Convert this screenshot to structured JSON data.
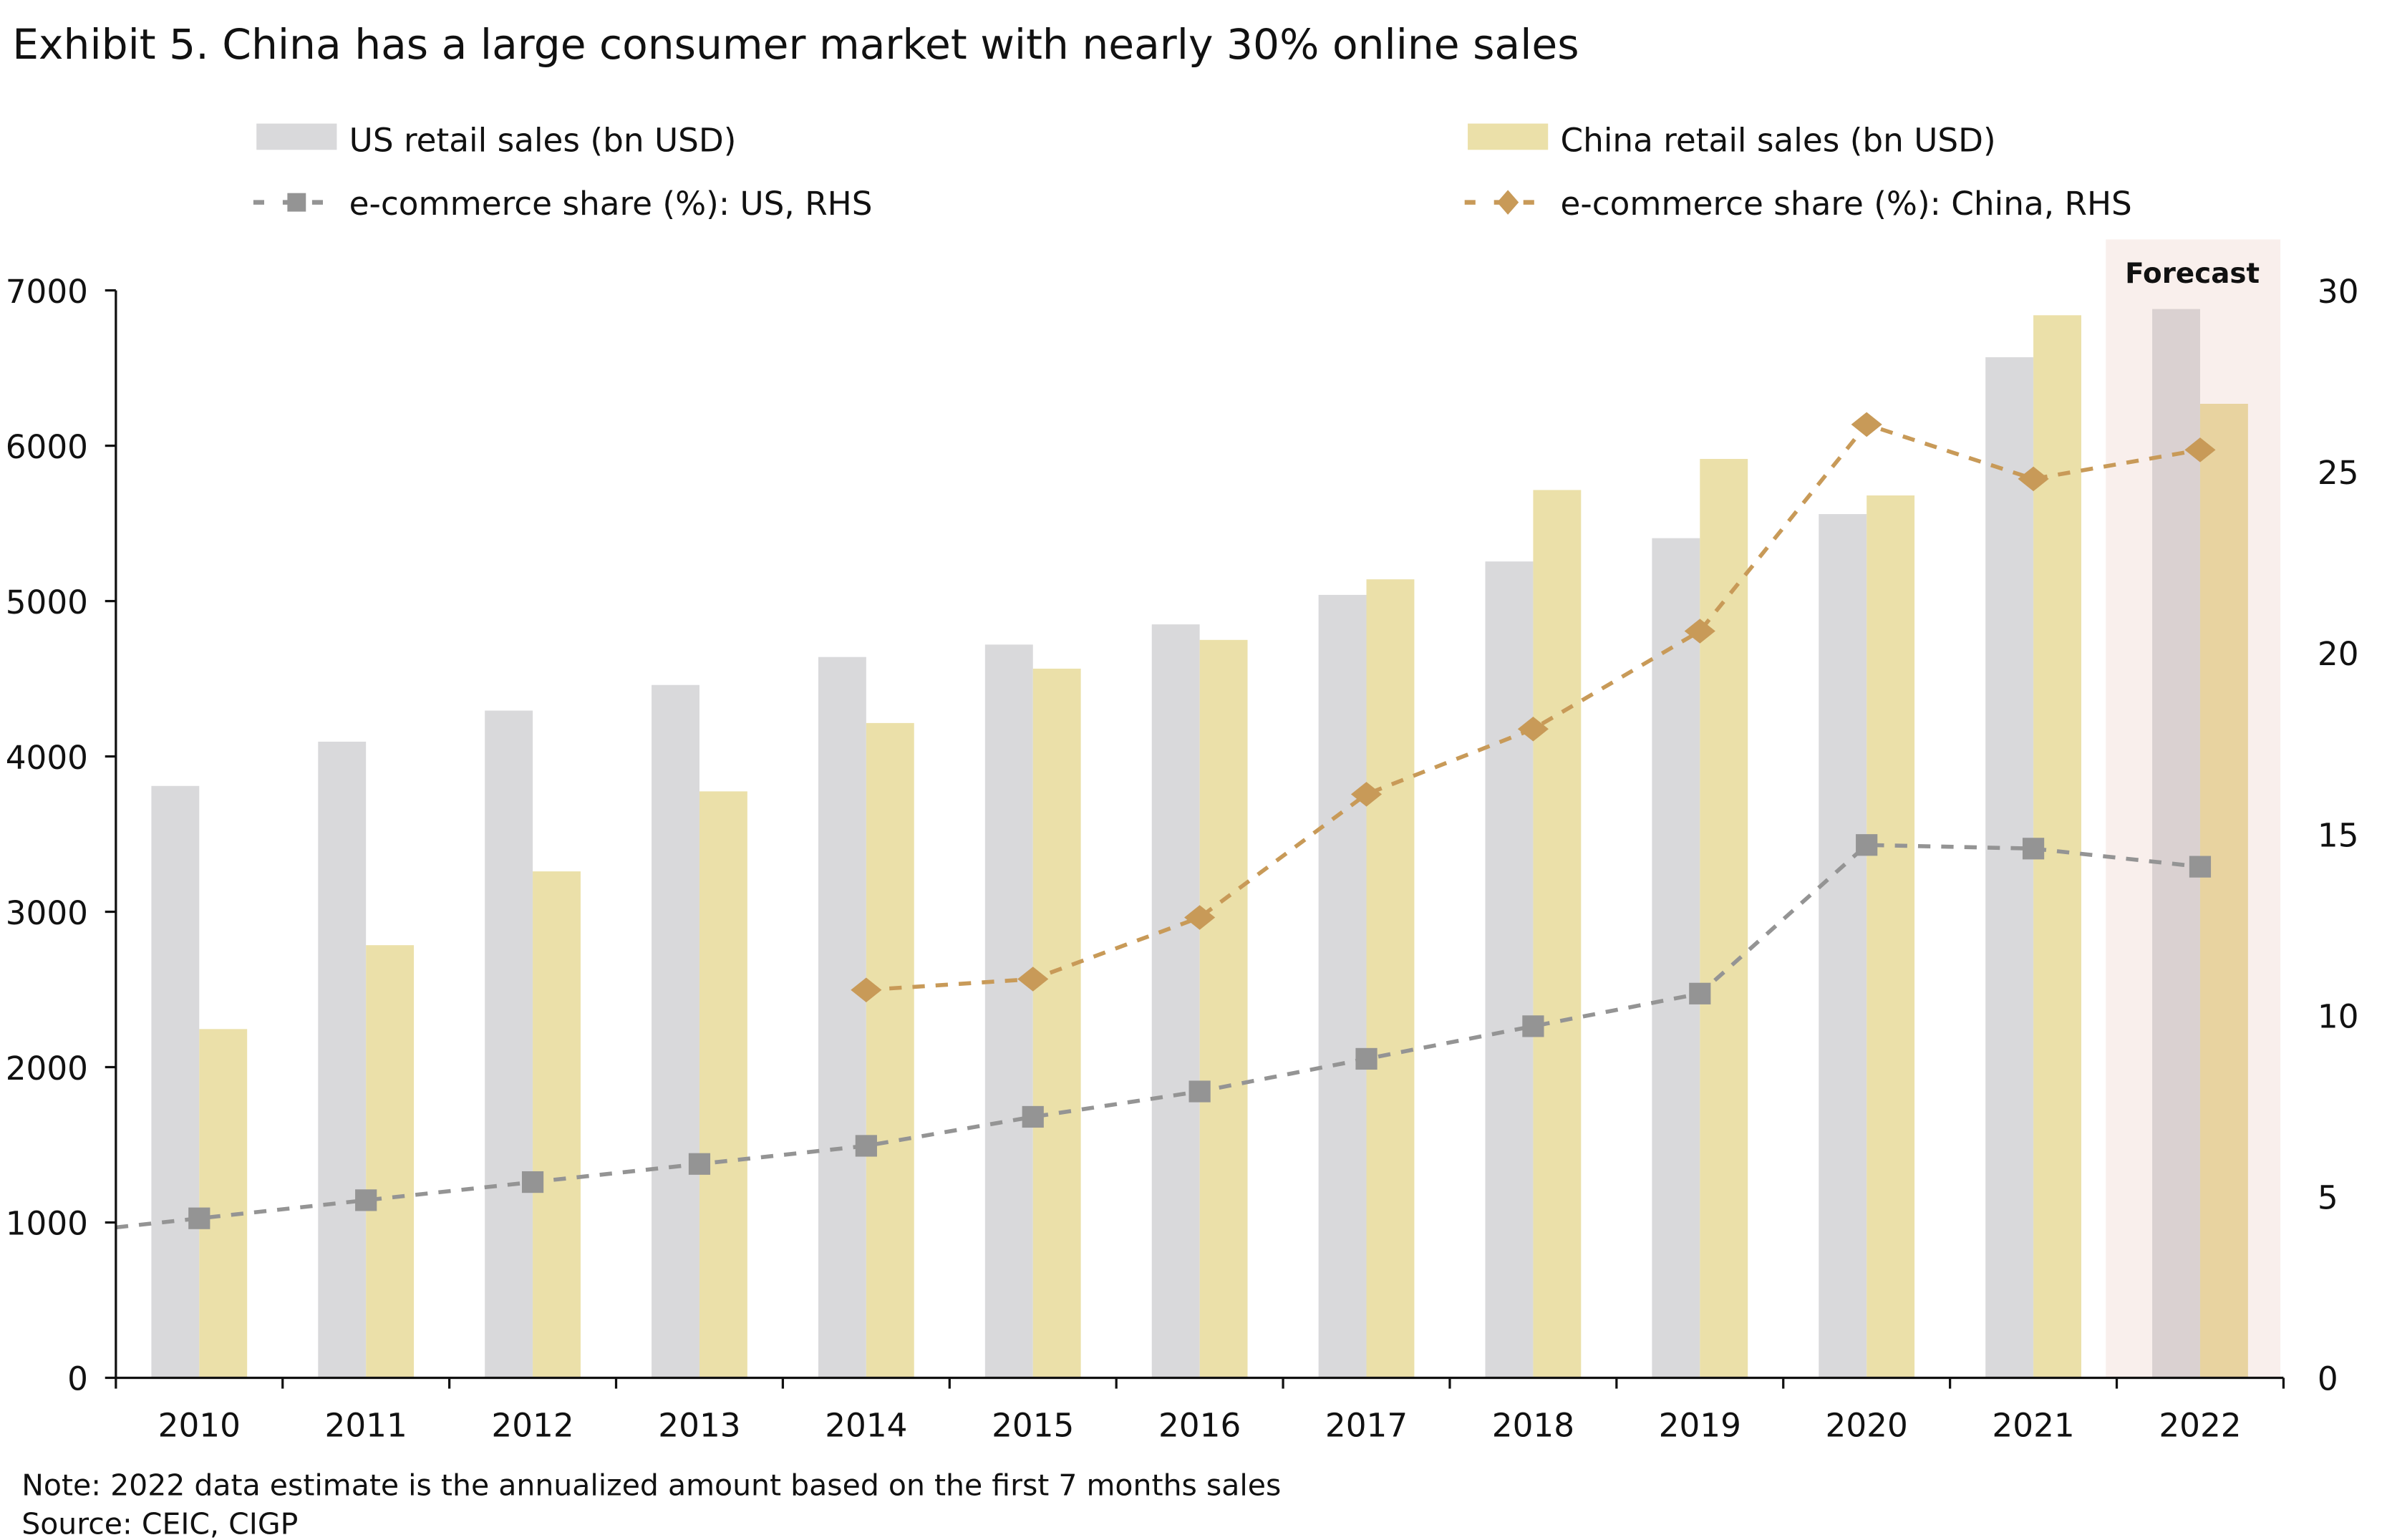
{
  "chart_data": {
    "type": "bar",
    "title": "Exhibit 5. China has a  large consumer market with nearly 30% online sales",
    "categories": [
      "2010",
      "2011",
      "2012",
      "2013",
      "2014",
      "2015",
      "2016",
      "2017",
      "2018",
      "2019",
      "2020",
      "2021",
      "2022"
    ],
    "series": [
      {
        "name": "US retail sales (bn USD)",
        "type": "bar",
        "axis": "left",
        "color": "#d9d9db",
        "values": [
          3810,
          4095,
          4295,
          4460,
          4640,
          4720,
          4850,
          5040,
          5255,
          5405,
          5560,
          6570,
          6880
        ]
      },
      {
        "name": "China retail sales (bn USD)",
        "type": "bar",
        "axis": "left",
        "color": "#ebe0a9",
        "values": [
          2245,
          2785,
          3260,
          3775,
          4215,
          4565,
          4750,
          5140,
          5715,
          5915,
          5680,
          6840,
          6270
        ]
      },
      {
        "name": "e-commerce share (%): US, RHS",
        "type": "line",
        "axis": "right",
        "color": "#949494",
        "marker": "square",
        "dash": true,
        "values": [
          4.4,
          4.9,
          5.4,
          5.9,
          6.4,
          7.2,
          7.9,
          8.8,
          9.7,
          10.6,
          14.7,
          14.6,
          14.1
        ]
      },
      {
        "name": "e-commerce share (%): China, RHS",
        "type": "line",
        "axis": "right",
        "color": "#c89a58",
        "marker": "diamond",
        "dash": true,
        "values": [
          null,
          null,
          null,
          null,
          10.7,
          11.0,
          12.7,
          16.1,
          17.9,
          20.6,
          26.3,
          24.8,
          25.6
        ]
      }
    ],
    "ylim_left": [
      0,
      7000
    ],
    "yticks_left": [
      "0",
      "1000",
      "2000",
      "3000",
      "4000",
      "5000",
      "6000",
      "7000"
    ],
    "ylim_right": [
      0,
      30
    ],
    "yticks_right": [
      "0",
      "5",
      "10",
      "15",
      "20",
      "25",
      "30"
    ],
    "grid": false,
    "legend_placement": "top",
    "forecast": {
      "label": "Forecast",
      "category": "2022",
      "color": "#f9efec",
      "us_bar_color": "#dad1d1",
      "china_bar_color": "#e8d3a0"
    }
  },
  "notes": {
    "note": "Note: 2022 data estimate is the annualized amount based on the first 7 months sales",
    "source": "Source: CEIC, CIGP"
  }
}
